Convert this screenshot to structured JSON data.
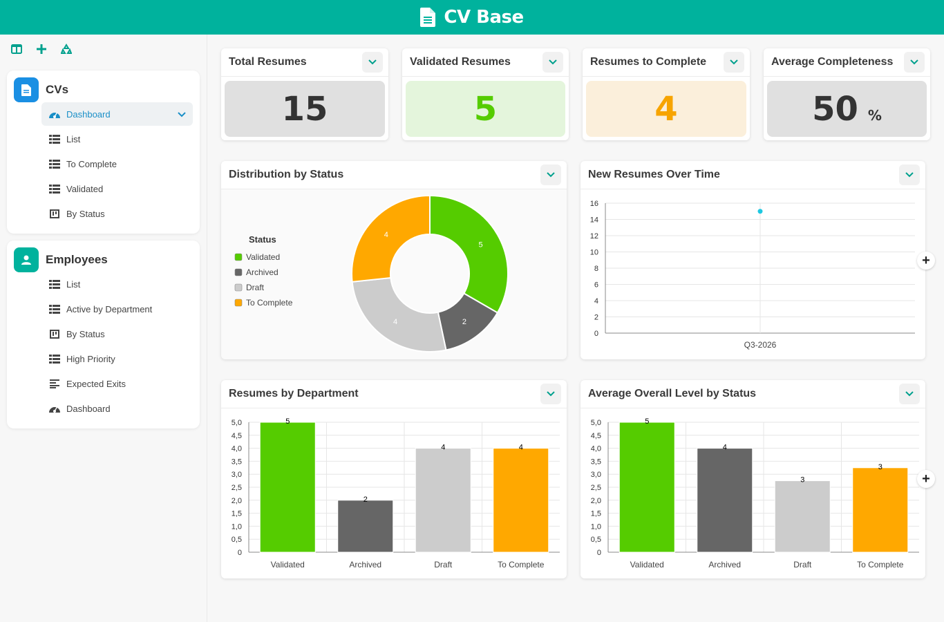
{
  "app": {
    "title": "CV Base"
  },
  "toolbar": {
    "icons": [
      "panel-icon",
      "plus-icon",
      "recycle-icon"
    ]
  },
  "sidebar": {
    "sections": [
      {
        "title": "CVs",
        "icon": "document-icon",
        "color": "#1a8fe3",
        "items": [
          {
            "label": "Dashboard",
            "icon": "dashboard-icon",
            "active": true
          },
          {
            "label": "List",
            "icon": "list-icon"
          },
          {
            "label": "To Complete",
            "icon": "list-icon"
          },
          {
            "label": "Validated",
            "icon": "list-icon"
          },
          {
            "label": "By Status",
            "icon": "kanban-icon"
          }
        ]
      },
      {
        "title": "Employees",
        "icon": "user-badge-icon",
        "color": "#00b29d",
        "items": [
          {
            "label": "List",
            "icon": "list-icon"
          },
          {
            "label": "Active by Department",
            "icon": "list-icon"
          },
          {
            "label": "By Status",
            "icon": "kanban-icon"
          },
          {
            "label": "High Priority",
            "icon": "list-icon"
          },
          {
            "label": "Expected Exits",
            "icon": "align-left-icon"
          },
          {
            "label": "Dashboard",
            "icon": "dashboard-icon"
          }
        ]
      }
    ]
  },
  "kpis": [
    {
      "title": "Total Resumes",
      "value": "15",
      "bg": "#e0e0e0",
      "color": "#333333"
    },
    {
      "title": "Validated Resumes",
      "value": "5",
      "bg": "#e4f5dc",
      "color": "#55cc00"
    },
    {
      "title": "Resumes to Complete",
      "value": "4",
      "bg": "#fbefdb",
      "color": "#f7a400"
    },
    {
      "title": "Average Completeness",
      "value": "50",
      "unit": "%",
      "bg": "#e0e0e0",
      "color": "#333333"
    }
  ],
  "colors": {
    "validated": "#55cc00",
    "archived": "#666666",
    "draft": "#cccccc",
    "to_complete": "#ffa800",
    "accent": "#00b29d",
    "line_point": "#1ec8e1"
  },
  "cards": {
    "distribution": {
      "title": "Distribution by Status"
    },
    "new_over_time": {
      "title": "New Resumes Over Time"
    },
    "by_department": {
      "title": "Resumes by Department"
    },
    "avg_level": {
      "title": "Average Overall Level by Status"
    }
  },
  "chart_data": [
    {
      "type": "pie",
      "title": "Distribution by Status",
      "legend_title": "Status",
      "legend_position": "left",
      "categories": [
        "Validated",
        "Archived",
        "Draft",
        "To Complete"
      ],
      "values": [
        5,
        2,
        4,
        4
      ],
      "colors": [
        "#55cc00",
        "#666666",
        "#cccccc",
        "#ffa800"
      ]
    },
    {
      "type": "line",
      "title": "New Resumes Over Time",
      "categories": [
        "Q3-2026"
      ],
      "values": [
        15
      ],
      "ylim": [
        0,
        16
      ],
      "yticks": [
        "0",
        "2",
        "4",
        "6",
        "8",
        "10",
        "12",
        "14",
        "16"
      ],
      "grid": true
    },
    {
      "type": "bar",
      "title": "Resumes by Department",
      "categories": [
        "Validated",
        "Archived",
        "Draft",
        "To Complete"
      ],
      "values": [
        5,
        2,
        4,
        4
      ],
      "labels": [
        "5",
        "2",
        "4",
        "4"
      ],
      "colors": [
        "#55cc00",
        "#666666",
        "#cccccc",
        "#ffa800"
      ],
      "ylim": [
        0,
        5
      ],
      "yticks": [
        "0",
        "0,5",
        "1,0",
        "1,5",
        "2,0",
        "2,5",
        "3,0",
        "3,5",
        "4,0",
        "4,5",
        "5,0"
      ],
      "grid": true
    },
    {
      "type": "bar",
      "title": "Average Overall Level by Status",
      "categories": [
        "Validated",
        "Archived",
        "Draft",
        "To Complete"
      ],
      "values": [
        5,
        4,
        2.75,
        3.25
      ],
      "labels": [
        "5",
        "4",
        "3",
        "3"
      ],
      "colors": [
        "#55cc00",
        "#666666",
        "#cccccc",
        "#ffa800"
      ],
      "ylim": [
        0,
        5
      ],
      "yticks": [
        "0",
        "0,5",
        "1,0",
        "1,5",
        "2,0",
        "2,5",
        "3,0",
        "3,5",
        "4,0",
        "4,5",
        "5,0"
      ],
      "grid": true
    }
  ]
}
